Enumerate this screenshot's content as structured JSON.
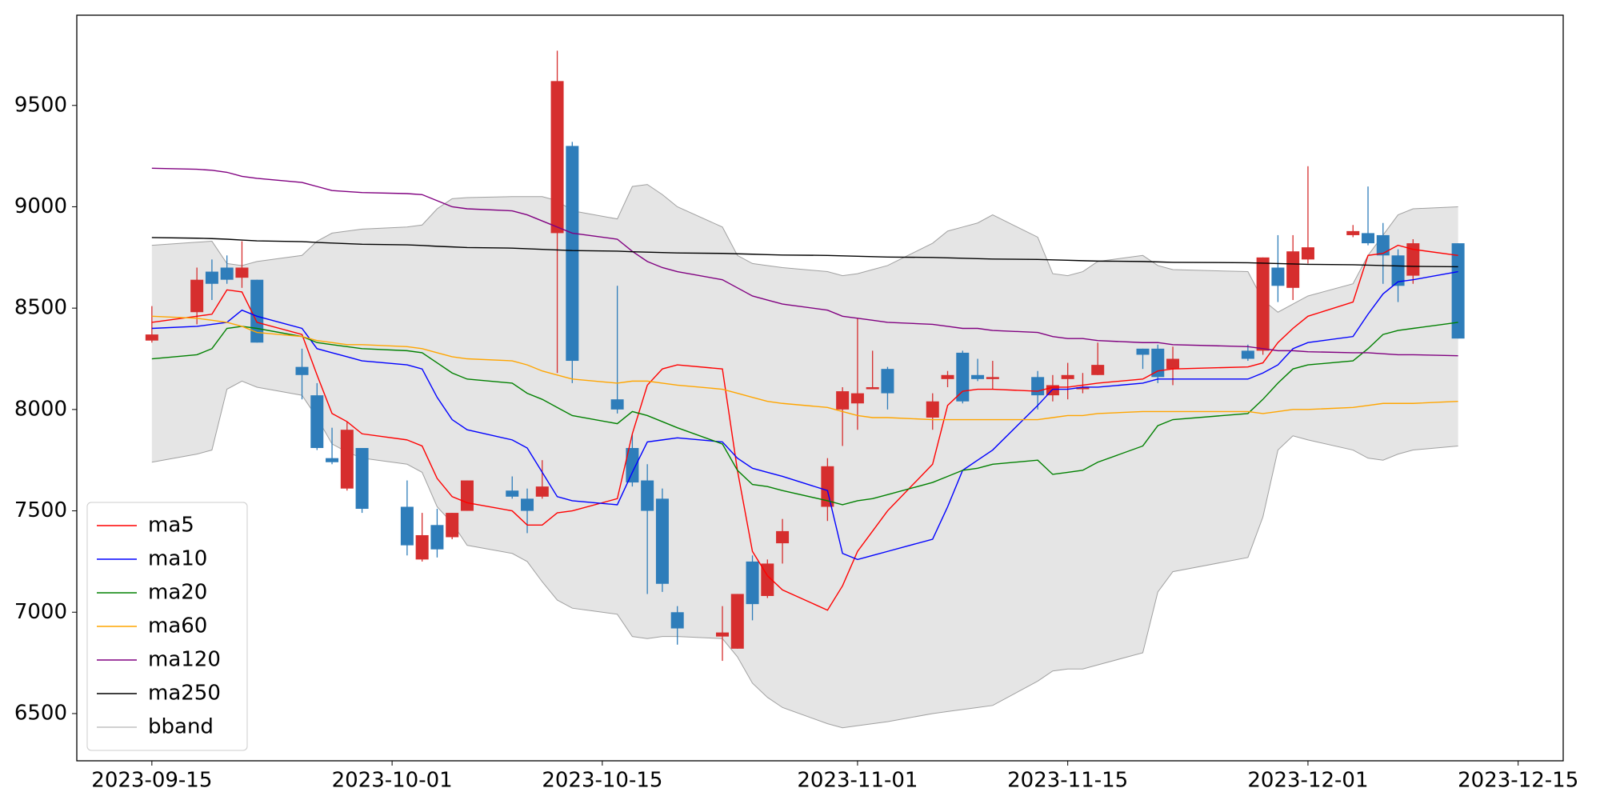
{
  "chart_data": {
    "type": "candlestick",
    "x": [
      "2023-09-15",
      "2023-09-18",
      "2023-09-19",
      "2023-09-20",
      "2023-09-21",
      "2023-09-22",
      "2023-09-25",
      "2023-09-26",
      "2023-09-27",
      "2023-09-28",
      "2023-09-29",
      "2023-10-02",
      "2023-10-03",
      "2023-10-04",
      "2023-10-05",
      "2023-10-06",
      "2023-10-09",
      "2023-10-10",
      "2023-10-11",
      "2023-10-12",
      "2023-10-13",
      "2023-10-16",
      "2023-10-17",
      "2023-10-18",
      "2023-10-19",
      "2023-10-20",
      "2023-10-23",
      "2023-10-24",
      "2023-10-25",
      "2023-10-26",
      "2023-10-27",
      "2023-10-30",
      "2023-10-31",
      "2023-11-01",
      "2023-11-02",
      "2023-11-03",
      "2023-11-06",
      "2023-11-07",
      "2023-11-08",
      "2023-11-09",
      "2023-11-10",
      "2023-11-13",
      "2023-11-14",
      "2023-11-15",
      "2023-11-16",
      "2023-11-17",
      "2023-11-20",
      "2023-11-21",
      "2023-11-22",
      "2023-11-27",
      "2023-11-28",
      "2023-11-29",
      "2023-11-30",
      "2023-12-01",
      "2023-12-04",
      "2023-12-05",
      "2023-12-06",
      "2023-12-07",
      "2023-12-08",
      "2023-12-11"
    ],
    "open": [
      8340,
      8480,
      8680,
      8700,
      8650,
      8640,
      8210,
      8070,
      7760,
      7610,
      7810,
      7520,
      7260,
      7430,
      7370,
      7500,
      7600,
      7560,
      7570,
      8870,
      9300,
      8050,
      7810,
      7650,
      7560,
      7000,
      6880,
      6820,
      7250,
      7080,
      7340,
      7520,
      8000,
      8030,
      8100,
      8200,
      7960,
      8150,
      8280,
      8170,
      8150,
      8160,
      8070,
      8150,
      8100,
      8170,
      8300,
      8300,
      8200,
      8290,
      8290,
      8700,
      8600,
      8740,
      8860,
      8870,
      8860,
      8760,
      8660,
      8820
    ],
    "high": [
      8510,
      8700,
      8740,
      8760,
      8830,
      8640,
      8300,
      8130,
      7910,
      7940,
      7810,
      7650,
      7490,
      7510,
      7490,
      7650,
      7670,
      7610,
      7750,
      9770,
      9320,
      8610,
      7880,
      7730,
      7610,
      7030,
      7030,
      7090,
      7280,
      7260,
      7460,
      7760,
      8110,
      8450,
      8290,
      8210,
      8080,
      8190,
      8290,
      8250,
      8240,
      8190,
      8170,
      8230,
      8180,
      8330,
      8300,
      8320,
      8310,
      8320,
      8750,
      8860,
      8860,
      9200,
      8910,
      9100,
      8920,
      8790,
      8840,
      8820
    ],
    "low": [
      8330,
      8420,
      8540,
      8620,
      8600,
      8330,
      8050,
      7800,
      7730,
      7600,
      7490,
      7280,
      7250,
      7270,
      7360,
      7500,
      7560,
      7390,
      7560,
      8180,
      8130,
      7980,
      7620,
      7090,
      7100,
      6840,
      6760,
      6820,
      6960,
      7070,
      7240,
      7450,
      7820,
      7900,
      8100,
      8000,
      7900,
      8110,
      8030,
      8140,
      8100,
      8000,
      8040,
      8050,
      8080,
      8170,
      8200,
      8130,
      8120,
      8240,
      8270,
      8530,
      8540,
      8720,
      8850,
      8810,
      8620,
      8530,
      8620,
      8350
    ],
    "close": [
      8370,
      8640,
      8620,
      8640,
      8700,
      8330,
      8170,
      7810,
      7740,
      7900,
      7510,
      7330,
      7380,
      7310,
      7490,
      7650,
      7570,
      7500,
      7620,
      9620,
      8240,
      8000,
      7640,
      7500,
      7140,
      6920,
      6900,
      7090,
      7040,
      7240,
      7400,
      7720,
      8090,
      8080,
      8110,
      8080,
      8040,
      8170,
      8040,
      8150,
      8160,
      8070,
      8120,
      8170,
      8110,
      8220,
      8270,
      8160,
      8250,
      8250,
      8750,
      8610,
      8780,
      8800,
      8880,
      8820,
      8760,
      8610,
      8820,
      8350
    ],
    "up_color": "#d62e2e",
    "down_color": "#2e7dba",
    "series": [
      {
        "name": "ma5",
        "color": "#ff0000",
        "values": [
          8430,
          8460,
          8470,
          8590,
          8580,
          8430,
          8370,
          8170,
          7980,
          7940,
          7880,
          7850,
          7820,
          7660,
          7570,
          7540,
          7500,
          7430,
          7430,
          7490,
          7500,
          7560,
          7880,
          8120,
          8200,
          8220,
          8200,
          7700,
          7300,
          7180,
          7110,
          7010,
          7130,
          7300,
          7400,
          7500,
          7730,
          8020,
          8090,
          8100,
          8100,
          8090,
          8110,
          8110,
          8120,
          8130,
          8150,
          8190,
          8200,
          8210,
          8230,
          8330,
          8400,
          8460,
          8530,
          8760,
          8770,
          8810,
          8790,
          8760
        ]
      },
      {
        "name": "ma10",
        "color": "#0000ff",
        "values": [
          8400,
          8410,
          8420,
          8430,
          8490,
          8460,
          8400,
          8300,
          8280,
          8260,
          8240,
          8220,
          8200,
          8060,
          7950,
          7900,
          7850,
          7810,
          7690,
          7570,
          7550,
          7530,
          7690,
          7840,
          7850,
          7860,
          7840,
          7760,
          7710,
          7690,
          7670,
          7600,
          7290,
          7260,
          7280,
          7300,
          7360,
          7520,
          7700,
          7750,
          7800,
          8020,
          8100,
          8100,
          8110,
          8110,
          8130,
          8150,
          8150,
          8150,
          8180,
          8220,
          8300,
          8330,
          8360,
          8470,
          8570,
          8630,
          8640,
          8680
        ]
      },
      {
        "name": "ma20",
        "color": "#008000",
        "values": [
          8250,
          8270,
          8300,
          8400,
          8410,
          8400,
          8360,
          8330,
          8320,
          8310,
          8300,
          8290,
          8280,
          8230,
          8180,
          8150,
          8130,
          8080,
          8050,
          8010,
          7970,
          7930,
          7990,
          7970,
          7940,
          7910,
          7830,
          7700,
          7630,
          7620,
          7600,
          7550,
          7530,
          7550,
          7560,
          7580,
          7640,
          7670,
          7700,
          7710,
          7730,
          7750,
          7680,
          7690,
          7700,
          7740,
          7820,
          7920,
          7950,
          7980,
          8050,
          8130,
          8200,
          8220,
          8240,
          8300,
          8370,
          8390,
          8400,
          8430
        ]
      },
      {
        "name": "ma60",
        "color": "#ffa500",
        "values": [
          8460,
          8450,
          8440,
          8430,
          8410,
          8380,
          8360,
          8340,
          8330,
          8320,
          8320,
          8310,
          8300,
          8280,
          8260,
          8250,
          8240,
          8220,
          8190,
          8170,
          8150,
          8130,
          8140,
          8140,
          8130,
          8120,
          8100,
          8080,
          8060,
          8040,
          8030,
          8010,
          7990,
          7970,
          7960,
          7960,
          7950,
          7950,
          7950,
          7950,
          7950,
          7950,
          7960,
          7970,
          7970,
          7980,
          7990,
          7990,
          7990,
          7990,
          7980,
          7990,
          8000,
          8000,
          8010,
          8020,
          8030,
          8030,
          8030,
          8040
        ]
      },
      {
        "name": "ma120",
        "color": "#800080",
        "values": [
          9190,
          9185,
          9180,
          9170,
          9150,
          9140,
          9120,
          9100,
          9080,
          9075,
          9070,
          9065,
          9060,
          9030,
          9000,
          8990,
          8980,
          8960,
          8930,
          8900,
          8870,
          8840,
          8780,
          8730,
          8700,
          8680,
          8640,
          8600,
          8560,
          8540,
          8520,
          8490,
          8460,
          8450,
          8440,
          8430,
          8420,
          8410,
          8400,
          8400,
          8390,
          8380,
          8360,
          8350,
          8350,
          8340,
          8330,
          8330,
          8320,
          8310,
          8300,
          8290,
          8290,
          8285,
          8280,
          8280,
          8275,
          8270,
          8270,
          8265
        ]
      },
      {
        "name": "ma250",
        "color": "#000000",
        "values": [
          8848,
          8845,
          8843,
          8840,
          8836,
          8832,
          8828,
          8824,
          8821,
          8818,
          8815,
          8812,
          8809,
          8805,
          8802,
          8799,
          8796,
          8793,
          8790,
          8787,
          8784,
          8781,
          8778,
          8776,
          8774,
          8772,
          8770,
          8768,
          8766,
          8764,
          8762,
          8760,
          8758,
          8756,
          8754,
          8752,
          8750,
          8748,
          8746,
          8744,
          8742,
          8740,
          8738,
          8736,
          8734,
          8732,
          8730,
          8728,
          8726,
          8724,
          8722,
          8720,
          8718,
          8716,
          8714,
          8712,
          8710,
          8708,
          8706,
          8704
        ]
      }
    ],
    "band": {
      "name": "bband",
      "color": "#a0a0a0",
      "fill": "#e5e5e5",
      "upper": [
        8810,
        8825,
        8830,
        8720,
        8710,
        8730,
        8760,
        8830,
        8870,
        8880,
        8890,
        8900,
        8910,
        8990,
        9040,
        9045,
        9050,
        9050,
        9050,
        9030,
        8980,
        8940,
        9100,
        9110,
        9060,
        9000,
        8900,
        8760,
        8720,
        8710,
        8700,
        8680,
        8660,
        8670,
        8690,
        8710,
        8820,
        8880,
        8900,
        8920,
        8960,
        8850,
        8670,
        8660,
        8680,
        8730,
        8760,
        8710,
        8690,
        8680,
        8540,
        8480,
        8520,
        8560,
        8620,
        8760,
        8860,
        8960,
        8990,
        9000
      ],
      "lower": [
        7740,
        7780,
        7800,
        8100,
        8140,
        8110,
        8070,
        7960,
        7830,
        7790,
        7760,
        7730,
        7690,
        7520,
        7440,
        7330,
        7290,
        7250,
        7150,
        7060,
        7020,
        6990,
        6880,
        6870,
        6880,
        6880,
        6870,
        6780,
        6650,
        6580,
        6530,
        6450,
        6430,
        6440,
        6450,
        6460,
        6500,
        6510,
        6520,
        6530,
        6540,
        6660,
        6710,
        6720,
        6720,
        6740,
        6800,
        7100,
        7200,
        7270,
        7470,
        7800,
        7870,
        7850,
        7800,
        7760,
        7750,
        7780,
        7800,
        7820
      ]
    },
    "xlim": [
      "2023-09-10",
      "2023-12-18"
    ],
    "xticks": [
      "2023-09-15",
      "2023-10-01",
      "2023-10-15",
      "2023-11-01",
      "2023-11-15",
      "2023-12-01",
      "2023-12-15"
    ],
    "ylim": [
      6267,
      9945
    ],
    "yticks": [
      6500,
      7000,
      7500,
      8000,
      8500,
      9000,
      9500
    ],
    "legend": "lower left"
  }
}
